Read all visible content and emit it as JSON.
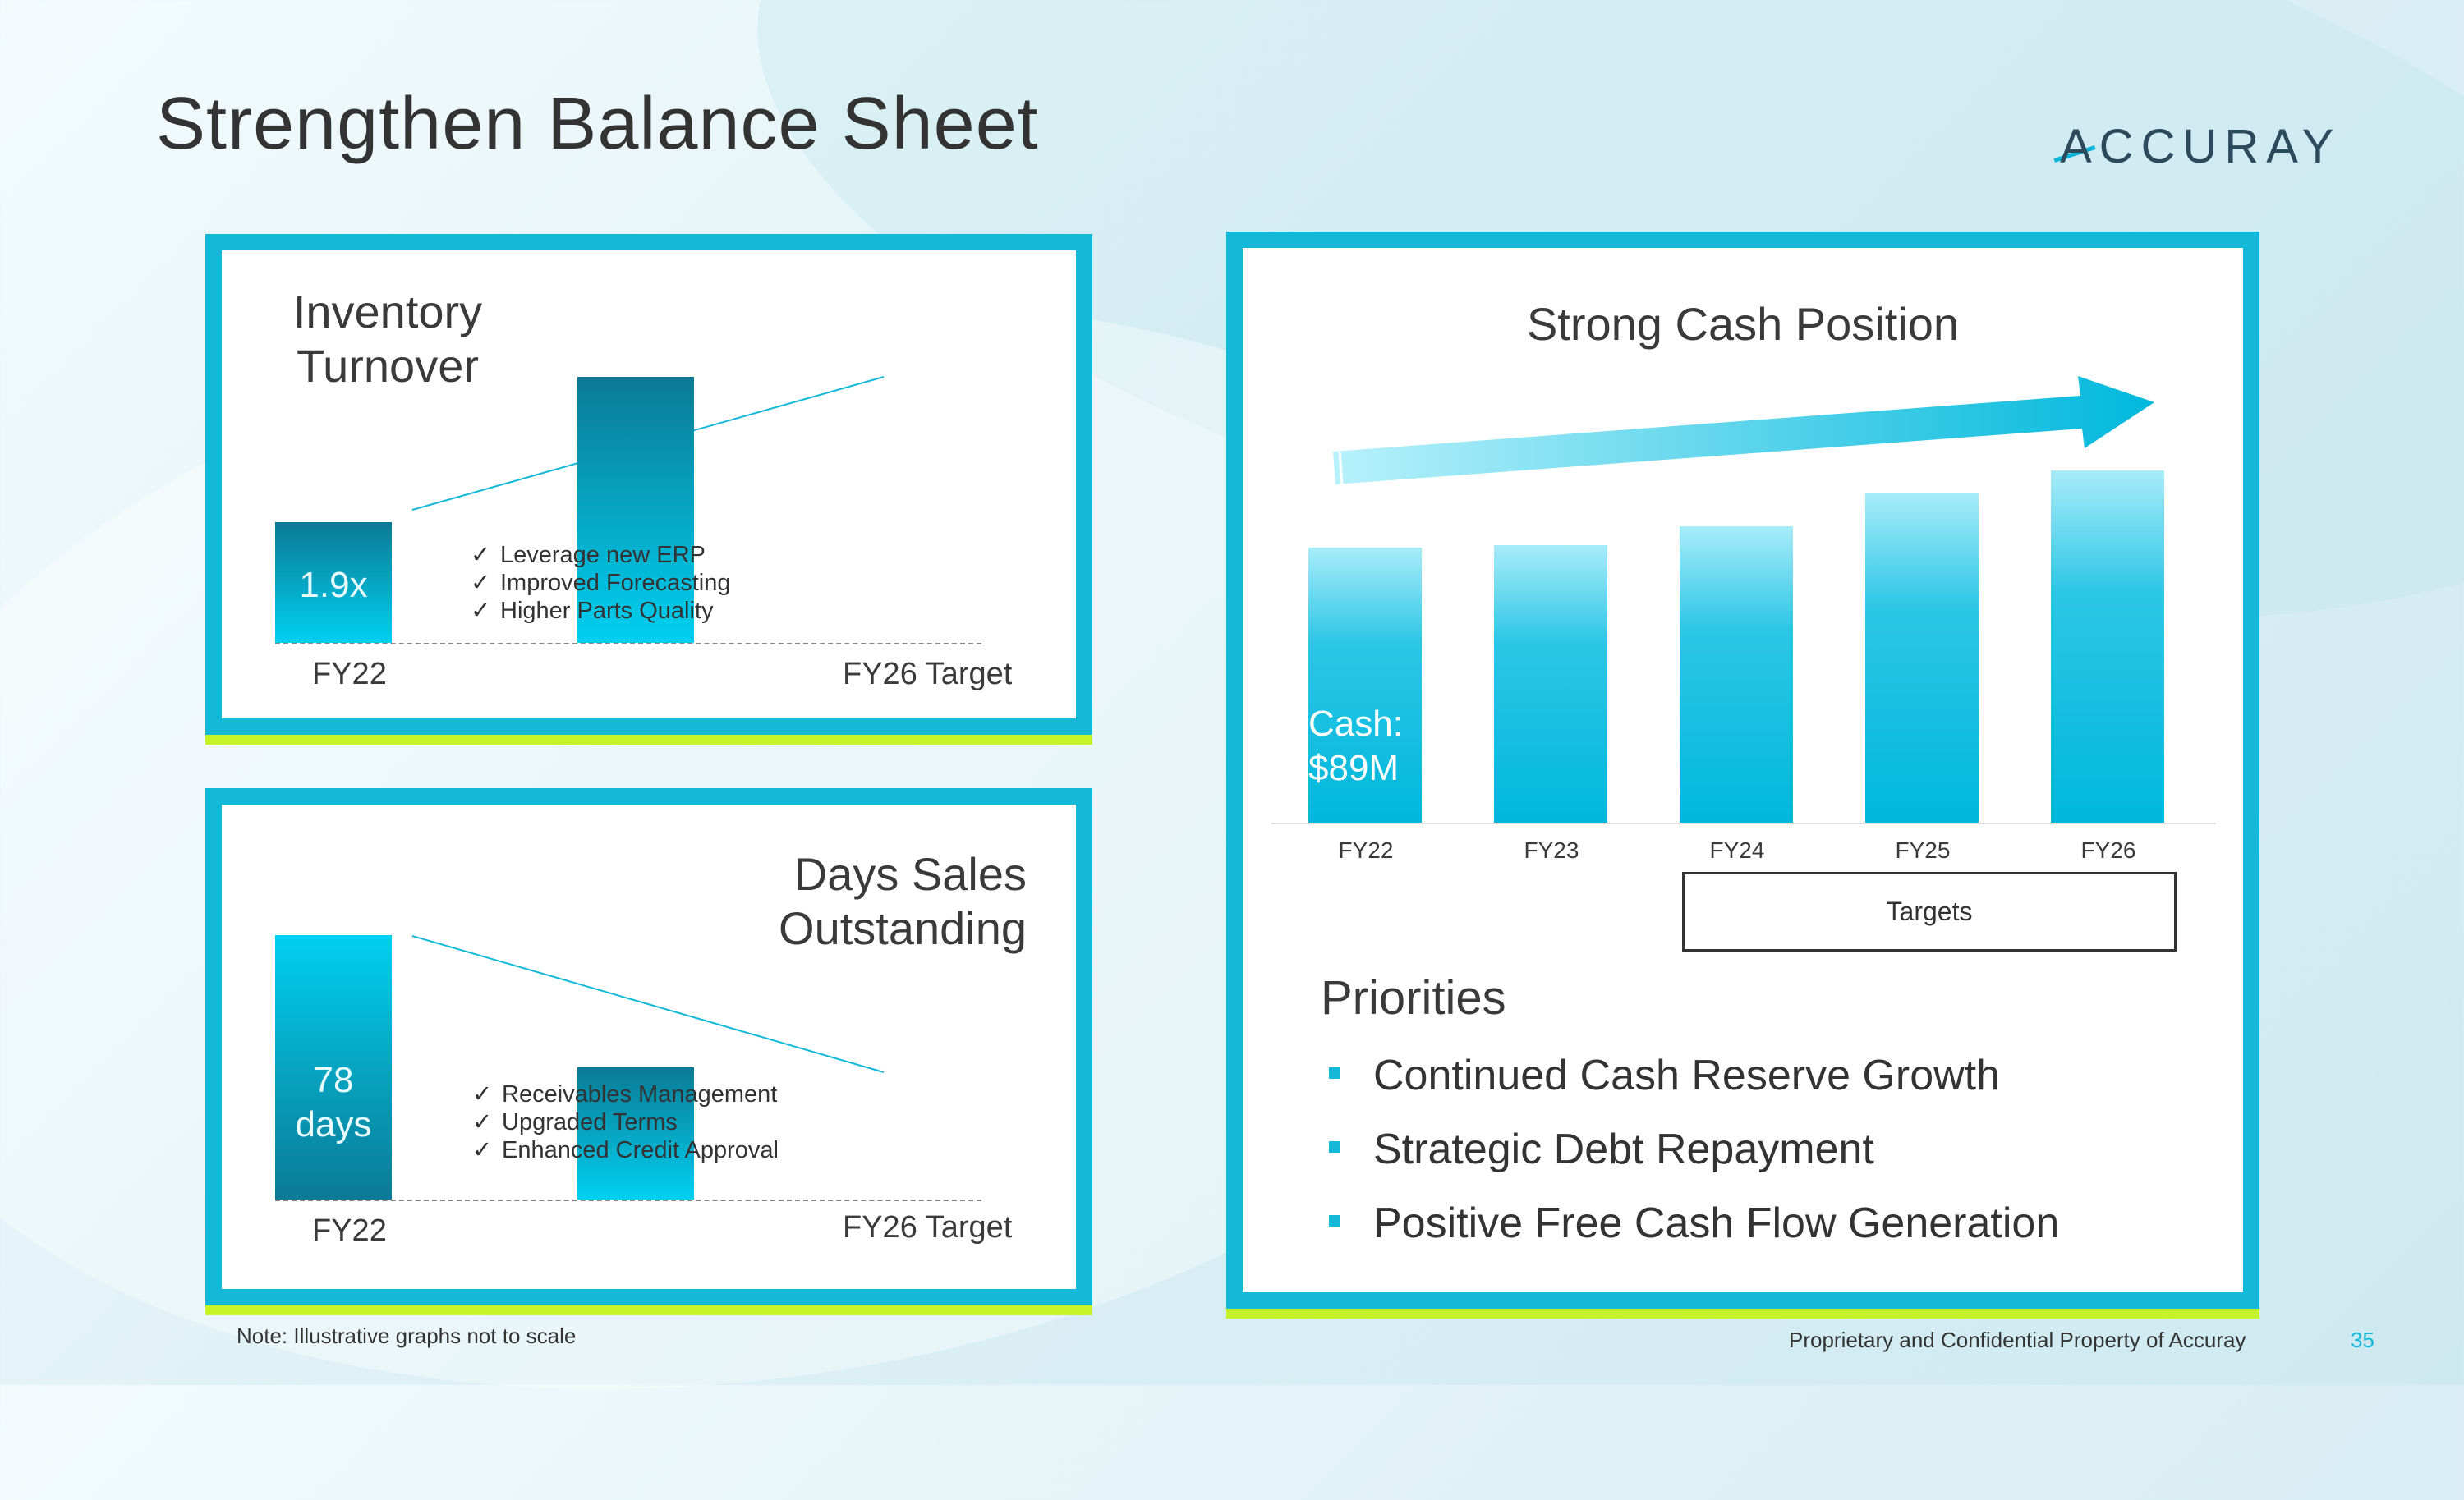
{
  "page": {
    "title": "Strengthen Balance Sheet",
    "logo_text": "ACCURAY"
  },
  "inventory": {
    "title_line1": "Inventory",
    "title_line2": "Turnover",
    "fy22_value": "1.9x",
    "checks": [
      "Leverage new ERP",
      "Improved Forecasting",
      "Higher Parts Quality"
    ],
    "x_labels": [
      "FY22",
      "FY26 Target"
    ]
  },
  "dso": {
    "title_line1": "Days Sales",
    "title_line2": "Outstanding",
    "fy22_value_line1": "78",
    "fy22_value_line2": "days",
    "checks": [
      "Receivables Management",
      "Upgraded Terms",
      "Enhanced Credit Approval"
    ],
    "x_labels": [
      "FY22",
      "FY26 Target"
    ]
  },
  "cash": {
    "title": "Strong Cash Position",
    "cash_label_line1": "Cash:",
    "cash_label_line2": "$89M",
    "targets_label": "Targets",
    "priorities_title": "Priorities",
    "priorities": [
      "Continued Cash Reserve Growth",
      "Strategic Debt Repayment",
      "Positive Free Cash Flow Generation"
    ]
  },
  "chart_data": [
    {
      "type": "bar",
      "title": "Inventory Turnover",
      "categories": [
        "FY22",
        "FY26 Target"
      ],
      "values": [
        1.9,
        4.2
      ],
      "data_labels": [
        "1.9x",
        ""
      ],
      "note": "illustrative, not to scale"
    },
    {
      "type": "bar",
      "title": "Days Sales Outstanding",
      "categories": [
        "FY22",
        "FY26 Target"
      ],
      "values": [
        78,
        39
      ],
      "data_labels": [
        "78 days",
        ""
      ],
      "note": "illustrative, not to scale"
    },
    {
      "type": "bar",
      "title": "Strong Cash Position",
      "categories": [
        "FY22",
        "FY23",
        "FY24",
        "FY25",
        "FY26"
      ],
      "values": [
        89,
        90,
        96,
        107,
        114
      ],
      "data_labels": [
        "Cash: $89M",
        "",
        "",
        "",
        ""
      ],
      "target_categories": [
        "FY24",
        "FY25",
        "FY26"
      ]
    }
  ],
  "footer": {
    "note": "Note:  Illustrative graphs not to scale",
    "confidential": "Proprietary and Confidential Property of Accuray",
    "page_number": "35"
  },
  "colors": {
    "accent": "#14b9da",
    "lime": "#c6f229",
    "bar_dark": "#0b7a95"
  }
}
